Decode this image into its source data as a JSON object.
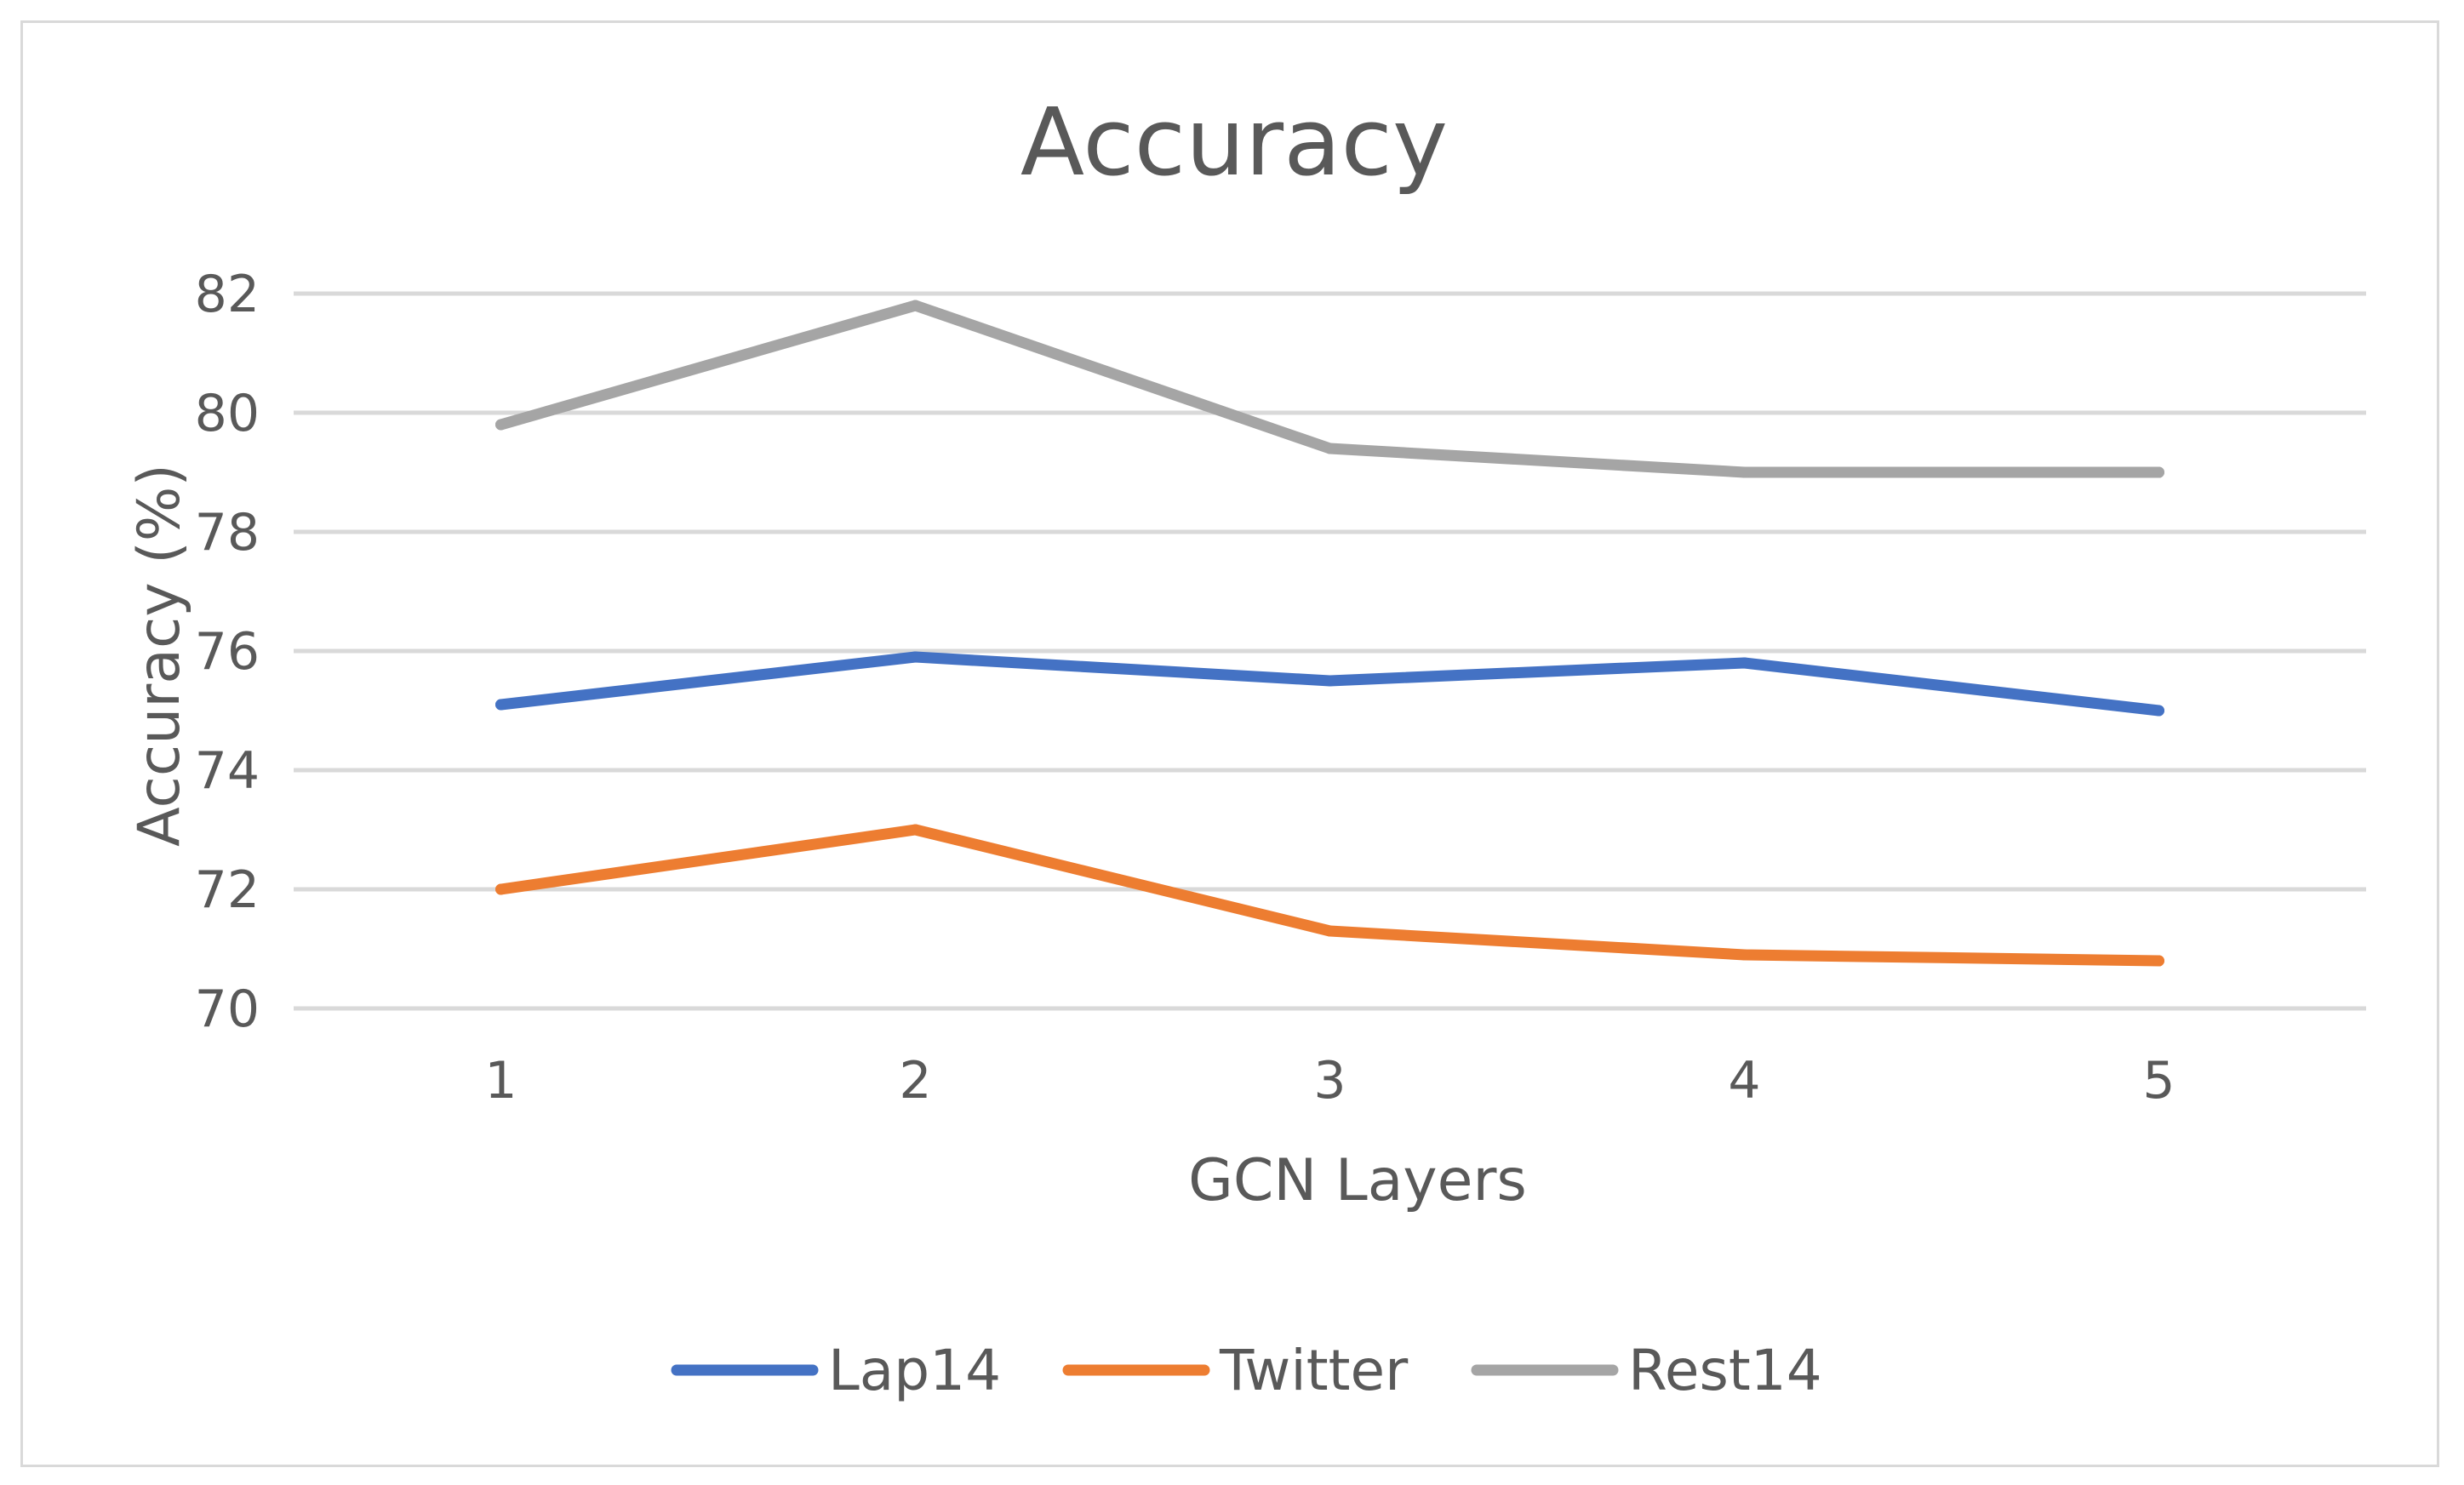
{
  "chart_data": {
    "type": "line",
    "title": "Accuracy",
    "xlabel": "GCN Layers",
    "ylabel": "Accuracy (%)",
    "categories": [
      "1",
      "2",
      "3",
      "4",
      "5"
    ],
    "ylim": [
      70,
      82
    ],
    "yticks": [
      "70",
      "72",
      "74",
      "76",
      "78",
      "80",
      "82"
    ],
    "grid": true,
    "legend_position": "bottom",
    "series": [
      {
        "name": "Lap14",
        "color": "#4472c4",
        "values": [
          75.1,
          75.9,
          75.5,
          75.8,
          75.0
        ]
      },
      {
        "name": "Twitter",
        "color": "#ed7d31",
        "values": [
          72.0,
          73.0,
          71.3,
          70.9,
          70.8
        ]
      },
      {
        "name": "Rest14",
        "color": "#a5a5a5",
        "values": [
          79.8,
          81.8,
          79.4,
          79.0,
          79.0
        ]
      }
    ]
  }
}
